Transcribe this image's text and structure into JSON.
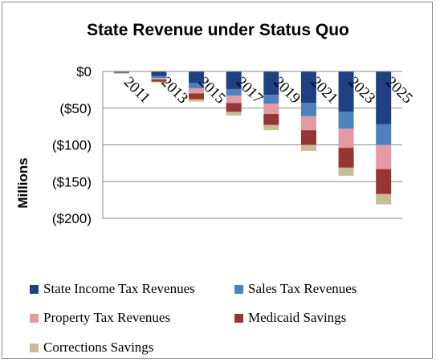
{
  "chart_data": {
    "type": "bar",
    "stacked": true,
    "title": "State Revenue under Status Quo",
    "ylabel": "Millions",
    "xlabel": "",
    "categories": [
      "2011",
      "2013",
      "2015",
      "2017",
      "2019",
      "2021",
      "2023",
      "2025"
    ],
    "ylim": [
      -200,
      0
    ],
    "yticks": [
      0,
      -50,
      -100,
      -150,
      -200
    ],
    "ytick_labels": [
      "$0",
      "($50)",
      "($100)",
      "($150)",
      "($200)"
    ],
    "grid": true,
    "legend_position": "bottom",
    "series": [
      {
        "name": "State Income Tax Revenues",
        "color": "#1f4083",
        "values": [
          -1,
          -6,
          -16,
          -24,
          -32,
          -43,
          -55,
          -72
        ]
      },
      {
        "name": "Sales Tax Revenues",
        "color": "#4f81bd",
        "values": [
          -0.5,
          -3,
          -7,
          -9,
          -12,
          -18,
          -23,
          -28
        ]
      },
      {
        "name": "Property Tax Revenues",
        "color": "#e49aa0",
        "values": [
          -0.3,
          -2,
          -7,
          -10,
          -14,
          -19,
          -26,
          -33
        ]
      },
      {
        "name": "Medicaid Savings",
        "color": "#943634",
        "values": [
          -0.5,
          -3,
          -8,
          -12,
          -15,
          -20,
          -27,
          -34
        ]
      },
      {
        "name": "Corrections Savings",
        "color": "#c4bd97",
        "values": [
          -0.3,
          -1,
          -3,
          -5,
          -7,
          -8,
          -11,
          -14
        ]
      }
    ]
  }
}
